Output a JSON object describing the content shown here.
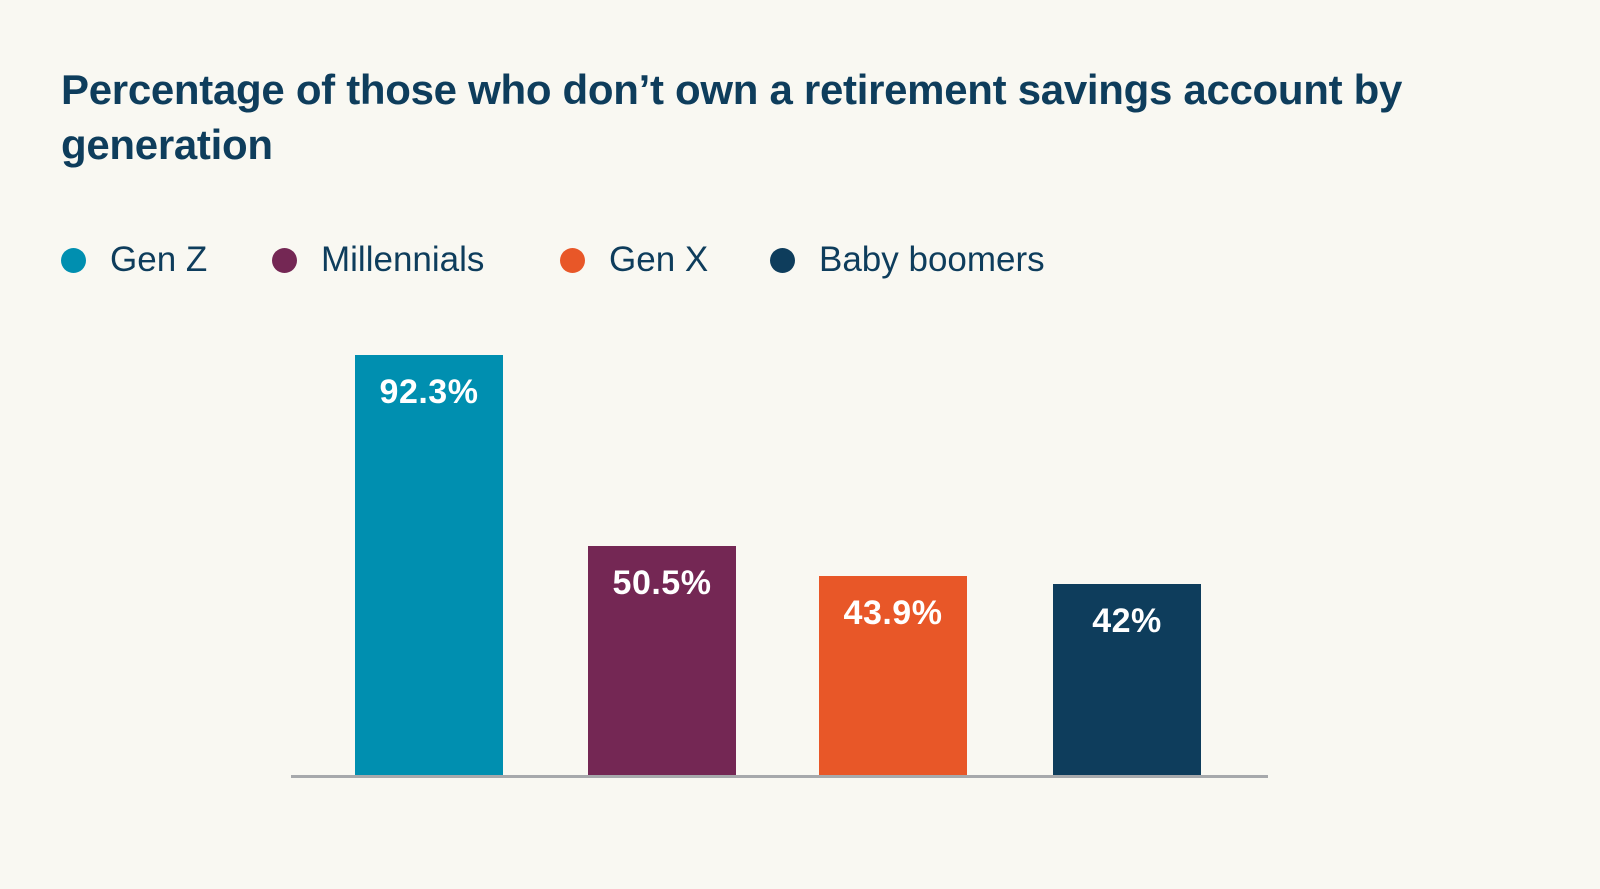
{
  "title": "Percentage of those who don’t own a retirement savings account by generation",
  "legend": [
    {
      "label": "Gen Z",
      "color": "#008fb0"
    },
    {
      "label": "Millennials",
      "color": "#742754"
    },
    {
      "label": "Gen X",
      "color": "#e85728"
    },
    {
      "label": "Baby boomers",
      "color": "#0e3d5c"
    }
  ],
  "bars": [
    {
      "label": "92.3%",
      "color": "#008fb0"
    },
    {
      "label": "50.5%",
      "color": "#742754"
    },
    {
      "label": "43.9%",
      "color": "#e85728"
    },
    {
      "label": "42%",
      "color": "#0e3d5c"
    }
  ],
  "chart_data": {
    "type": "bar",
    "title": "Percentage of those who don’t own a retirement savings account by generation",
    "categories": [
      "Gen Z",
      "Millennials",
      "Gen X",
      "Baby boomers"
    ],
    "values": [
      92.3,
      50.5,
      43.9,
      42
    ],
    "value_labels": [
      "92.3%",
      "50.5%",
      "43.9%",
      "42%"
    ],
    "colors": [
      "#008fb0",
      "#742754",
      "#e85728",
      "#0e3d5c"
    ],
    "xlabel": "",
    "ylabel": "",
    "ylim": [
      0,
      100
    ],
    "grid": false,
    "y_axis_visible": false,
    "legend_position": "top-left",
    "data_labels": "inside-top"
  }
}
